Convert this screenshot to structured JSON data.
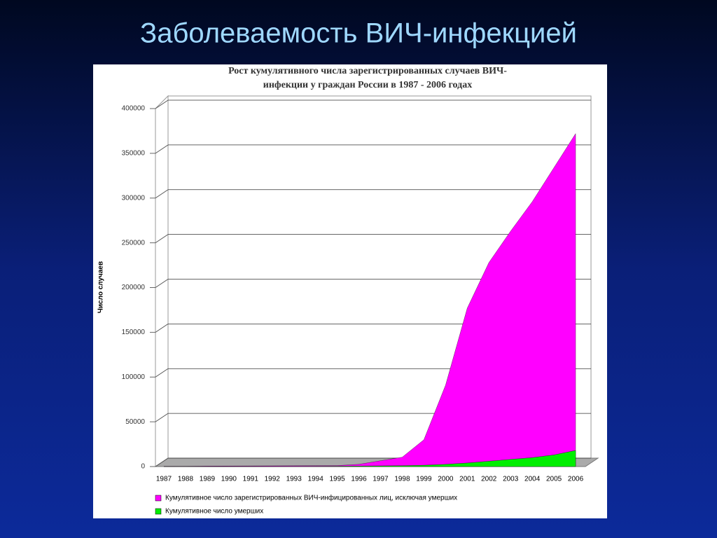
{
  "slide_title": "Заболеваемость ВИЧ-инфекцией",
  "chart_data": {
    "type": "area",
    "title": [
      "Рост кумулятивного числа зарегистрированных случаев ВИЧ-",
      "инфекции у граждан России в 1987 - 2006 годах"
    ],
    "y_label": "Число случаев",
    "categories": [
      "1987",
      "1988",
      "1989",
      "1990",
      "1991",
      "1992",
      "1993",
      "1994",
      "1995",
      "1996",
      "1997",
      "1998",
      "1999",
      "2000",
      "2001",
      "2002",
      "2003",
      "2004",
      "2005",
      "2006"
    ],
    "series": [
      {
        "name": "Кумулятивное число зарегистрированных ВИЧ-инфицированных лиц, исключая умерших",
        "color": "#ff00ff",
        "values": [
          100,
          200,
          500,
          600,
          700,
          800,
          900,
          1000,
          1100,
          2500,
          6500,
          10500,
          30000,
          91000,
          177000,
          228000,
          263000,
          296000,
          334000,
          372000
        ]
      },
      {
        "name": "Кумулятивное число умерших",
        "color": "#00ee00",
        "values": [
          0,
          10,
          20,
          30,
          50,
          100,
          200,
          300,
          400,
          600,
          800,
          1000,
          1500,
          2500,
          4000,
          6000,
          8000,
          10000,
          13000,
          18000
        ]
      }
    ],
    "ylim": [
      0,
      400000
    ],
    "yticks": [
      0,
      50000,
      100000,
      150000,
      200000,
      250000,
      300000,
      350000,
      400000
    ],
    "grid": true
  }
}
